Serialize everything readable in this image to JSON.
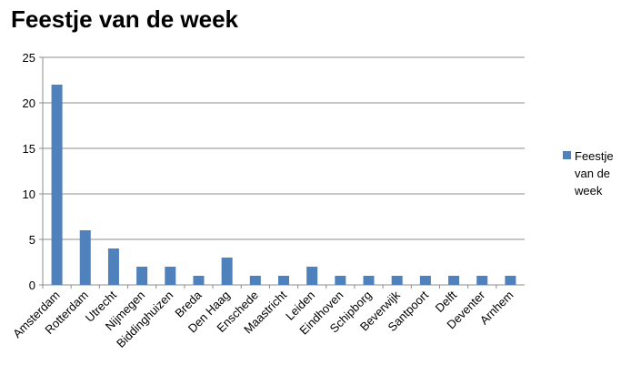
{
  "chart_data": {
    "type": "bar",
    "title": "Feestje van de week",
    "categories": [
      "Amsterdam",
      "Rotterdam",
      "Utrecht",
      "Nijmegen",
      "Biddinghuizen",
      "Breda",
      "Den Haag",
      "Enschede",
      "Maastricht",
      "Leiden",
      "Eindhoven",
      "Schipborg",
      "Beverwijk",
      "Santpoort",
      "Delft",
      "Deventer",
      "Arnhem"
    ],
    "series": [
      {
        "name": "Feestje van de week",
        "color": "#4f81bd",
        "values": [
          22,
          6,
          4,
          2,
          2,
          1,
          3,
          1,
          1,
          2,
          1,
          1,
          1,
          1,
          1,
          1,
          1
        ]
      }
    ],
    "ylim": [
      0,
      25
    ],
    "yticks": [
      0,
      5,
      10,
      15,
      20,
      25
    ],
    "grid": true,
    "legend": "right"
  }
}
